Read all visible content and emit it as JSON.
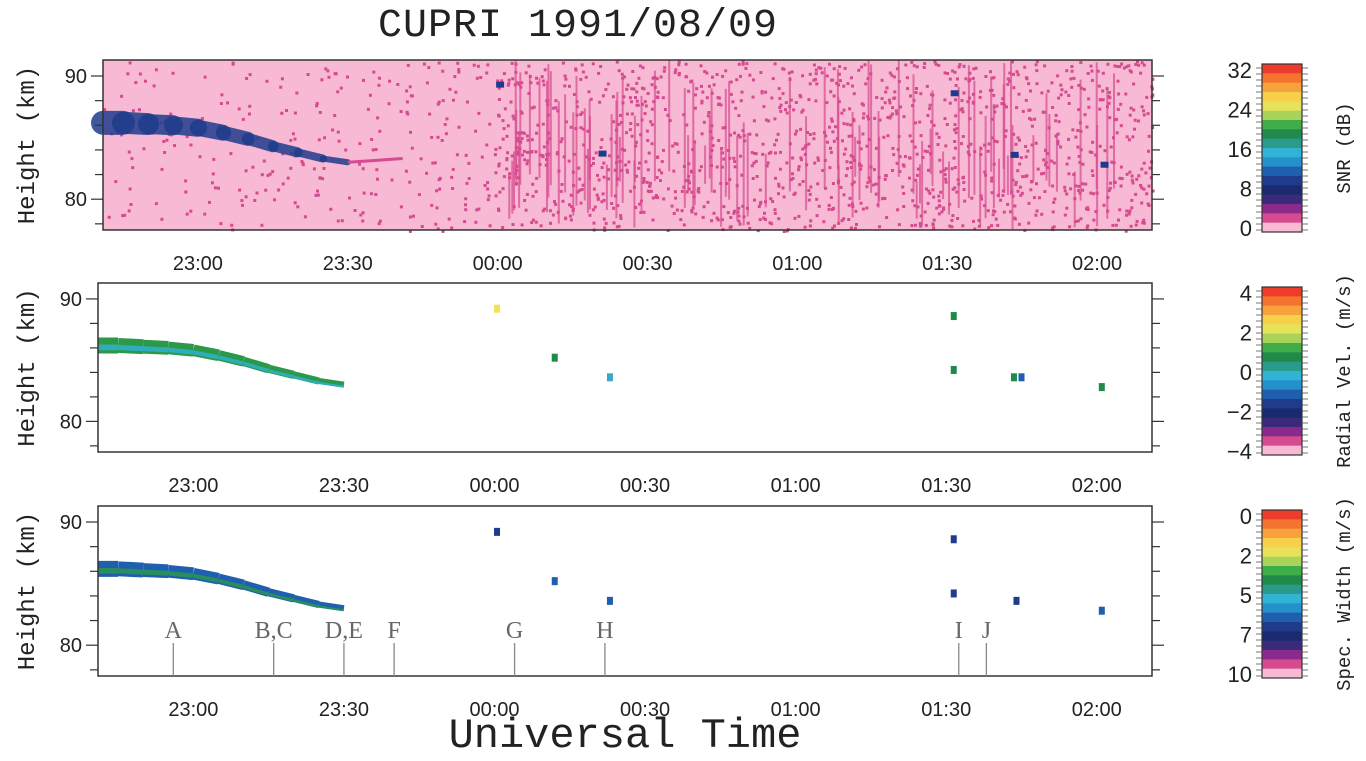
{
  "title": "CUPRI   1991/08/09",
  "xlabel": "Universal Time",
  "chart_data": [
    {
      "type": "heatmap",
      "name": "SNR",
      "ylabel": "Height (km)",
      "xlim_minutes": [
        -79,
        131
      ],
      "ylim": [
        77.5,
        91.3
      ],
      "x_ticks": [
        "23:00",
        "23:30",
        "00:00",
        "00:30",
        "01:00",
        "01:30",
        "02:00"
      ],
      "x_tick_minutes": [
        -60,
        -30,
        0,
        30,
        60,
        90,
        120
      ],
      "y_ticks": [
        80,
        90
      ],
      "colorbar": {
        "label": "SNR (dB)",
        "ticks": [
          "32",
          "24",
          "16",
          "8",
          "0"
        ],
        "range": [
          0,
          32
        ]
      },
      "background": "#f7b9d3",
      "noise_color": "#d64a8f",
      "layer": [
        {
          "time": -79,
          "height": 86.2
        },
        {
          "time": -75,
          "height": 86.2
        },
        {
          "time": -70,
          "height": 86.1
        },
        {
          "time": -65,
          "height": 86.0
        },
        {
          "time": -60,
          "height": 85.8
        },
        {
          "time": -55,
          "height": 85.4
        },
        {
          "time": -50,
          "height": 84.9
        },
        {
          "time": -45,
          "height": 84.3
        },
        {
          "time": -40,
          "height": 83.8
        },
        {
          "time": -35,
          "height": 83.3
        },
        {
          "time": -30,
          "height": 83.0
        }
      ]
    },
    {
      "type": "heatmap",
      "name": "Radial Velocity",
      "ylabel": "Height (km)",
      "xlim_minutes": [
        -79,
        131
      ],
      "ylim": [
        77.5,
        91.3
      ],
      "x_ticks": [
        "23:00",
        "23:30",
        "00:00",
        "00:30",
        "01:00",
        "01:30",
        "02:00"
      ],
      "y_ticks": [
        80,
        90
      ],
      "colorbar": {
        "label": "Radial Vel. (m/s)",
        "ticks": [
          "4",
          "2",
          "0",
          "−2",
          "−4"
        ],
        "range": [
          -4,
          4
        ]
      },
      "points": [
        {
          "time": 0.5,
          "height": 89.2,
          "color": "#f2e25a"
        },
        {
          "time": 12,
          "height": 85.2,
          "color": "#1f8a4a"
        },
        {
          "time": 23,
          "height": 83.6,
          "color": "#3aa9c9"
        },
        {
          "time": 91.5,
          "height": 88.6,
          "color": "#1f8a4a"
        },
        {
          "time": 91.5,
          "height": 84.2,
          "color": "#1f8a4a"
        },
        {
          "time": 103.5,
          "height": 83.6,
          "color": "#1f8a4a"
        },
        {
          "time": 105,
          "height": 83.6,
          "color": "#1f5fae"
        },
        {
          "time": 121,
          "height": 82.8,
          "color": "#1f8a4a"
        }
      ]
    },
    {
      "type": "heatmap",
      "name": "Spectral Width",
      "ylabel": "Height (km)",
      "xlim_minutes": [
        -79,
        131
      ],
      "ylim": [
        77.5,
        91.3
      ],
      "x_ticks": [
        "23:00",
        "23:30",
        "00:00",
        "00:30",
        "01:00",
        "01:30",
        "02:00"
      ],
      "y_ticks": [
        80,
        90
      ],
      "colorbar": {
        "label": "Spec. Width (m/s)",
        "ticks": [
          "0",
          "2",
          "5",
          "7",
          "10"
        ],
        "range": [
          0,
          10
        ]
      },
      "points": [
        {
          "time": 0.5,
          "height": 89.2,
          "color": "#1f3c8c"
        },
        {
          "time": 12,
          "height": 85.2,
          "color": "#1f5fae"
        },
        {
          "time": 23,
          "height": 83.6,
          "color": "#1f5fae"
        },
        {
          "time": 91.5,
          "height": 88.6,
          "color": "#1f3c8c"
        },
        {
          "time": 91.5,
          "height": 84.2,
          "color": "#1f3c8c"
        },
        {
          "time": 104,
          "height": 83.6,
          "color": "#1f3c8c"
        },
        {
          "time": 121,
          "height": 82.8,
          "color": "#1f5fae"
        }
      ],
      "events": [
        {
          "label": "A",
          "time": -64
        },
        {
          "label": "B,C",
          "time": -44
        },
        {
          "label": "D,E",
          "time": -30
        },
        {
          "label": "F",
          "time": -20
        },
        {
          "label": "G",
          "time": 4
        },
        {
          "label": "H",
          "time": 22
        },
        {
          "label": "I",
          "time": 92.5
        },
        {
          "label": "J",
          "time": 98
        }
      ]
    }
  ]
}
